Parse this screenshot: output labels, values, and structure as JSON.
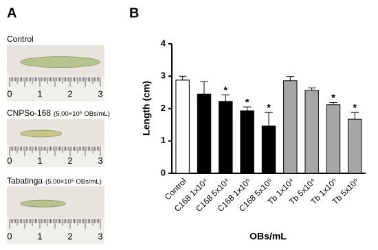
{
  "panel_a": {
    "label": "A",
    "photos": [
      {
        "label": "Control"
      },
      {
        "label": "CNPSo-168",
        "dose": "(5.00×10⁵ OBs/mL)"
      },
      {
        "label": "Tabatinga",
        "dose": "(5.00×10⁵ OBs/mL)"
      }
    ],
    "ruler_labels": [
      "0",
      "1",
      "2",
      "3"
    ]
  },
  "chart_data": {
    "type": "bar",
    "panel_label": "B",
    "y_label": "Length (cm)",
    "x_label": "OBs/mL",
    "categories": [
      "Control",
      "C168 1x10⁴",
      "C168 5x10⁴",
      "C168 1x10⁵",
      "C168 5x10⁵",
      "Tb 1x10⁴",
      "Tb 5x10⁴",
      "Tb 1x10⁵",
      "Tb 5x10⁵"
    ],
    "values": [
      2.88,
      2.45,
      2.22,
      1.93,
      1.46,
      2.86,
      2.56,
      2.12,
      1.67
    ],
    "errors": [
      0.12,
      0.38,
      0.2,
      0.12,
      0.42,
      0.13,
      0.08,
      0.07,
      0.21
    ],
    "colors": [
      "#ffffff",
      "#000000",
      "#000000",
      "#000000",
      "#000000",
      "#a6a6a6",
      "#a6a6a6",
      "#a6a6a6",
      "#a6a6a6"
    ],
    "annotations": [
      {
        "index": 2,
        "text": "*"
      },
      {
        "index": 3,
        "text": "*"
      },
      {
        "index": 4,
        "text": "*"
      },
      {
        "index": 7,
        "text": "*"
      },
      {
        "index": 8,
        "text": "*"
      }
    ],
    "ylim": [
      0,
      4
    ],
    "yticks": [
      0,
      1,
      2,
      3,
      4
    ]
  }
}
